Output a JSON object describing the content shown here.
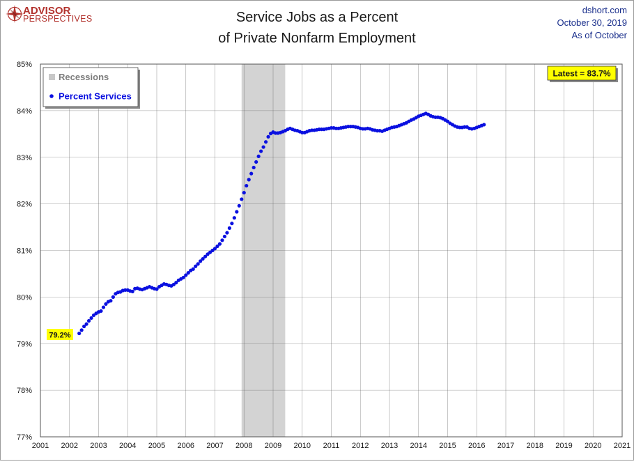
{
  "brand": {
    "line1": "ADVISOR",
    "line2": "PERSPECTIVES",
    "color": "#b2322d"
  },
  "header": {
    "title_line1": "Service Jobs as a Percent",
    "title_line2": "of Private Nonfarm Employment",
    "source": "dshort.com",
    "date": "October 30, 2019",
    "asof": "As of October"
  },
  "colors": {
    "series": "#0a10e0",
    "recession": "#d3d3d3",
    "grid": "#c8c8c8",
    "callout_bg": "#ffff00",
    "text": "#1a1a1a",
    "date_text": "#1a2f8c"
  },
  "chart_data": {
    "type": "scatter",
    "x_unit": "year",
    "xlim": [
      2001,
      2021
    ],
    "ylim": [
      77,
      85
    ],
    "x_ticks": [
      "2001",
      "2002",
      "2003",
      "2004",
      "2005",
      "2006",
      "2007",
      "2008",
      "2009",
      "2010",
      "2011",
      "2012",
      "2013",
      "2014",
      "2015",
      "2016",
      "2017",
      "2018",
      "2019",
      "2020",
      "2021"
    ],
    "y_ticks": [
      "77%",
      "78%",
      "79%",
      "80%",
      "81%",
      "82%",
      "83%",
      "84%",
      "85%"
    ],
    "grid": true,
    "legend_position": "top-left",
    "legend": {
      "recessions": "Recessions",
      "series": "Percent Services"
    },
    "recession": {
      "start": "2007-12",
      "end": "2009-06"
    },
    "annotations": {
      "first_label": "79.2%",
      "latest_label": "Latest = 83.7%"
    },
    "series": [
      {
        "name": "Percent Services",
        "start": "2002-05",
        "frequency": "monthly",
        "values": [
          79.22,
          79.29,
          79.37,
          79.42,
          79.49,
          79.55,
          79.61,
          79.65,
          79.68,
          79.7,
          79.78,
          79.85,
          79.9,
          79.92,
          80.0,
          80.07,
          80.1,
          80.11,
          80.14,
          80.15,
          80.15,
          80.13,
          80.12,
          80.18,
          80.19,
          80.17,
          80.16,
          80.18,
          80.2,
          80.22,
          80.2,
          80.18,
          80.17,
          80.22,
          80.25,
          80.28,
          80.27,
          80.25,
          80.24,
          80.27,
          80.31,
          80.36,
          80.39,
          80.42,
          80.47,
          80.52,
          80.57,
          80.6,
          80.66,
          80.71,
          80.77,
          80.82,
          80.87,
          80.92,
          80.96,
          81.0,
          81.04,
          81.09,
          81.14,
          81.22,
          81.3,
          81.38,
          81.48,
          81.58,
          81.7,
          81.83,
          81.96,
          82.1,
          82.24,
          82.39,
          82.52,
          82.65,
          82.78,
          82.9,
          83.02,
          83.13,
          83.22,
          83.33,
          83.44,
          83.51,
          83.54,
          83.52,
          83.52,
          83.53,
          83.55,
          83.57,
          83.6,
          83.62,
          83.6,
          83.58,
          83.57,
          83.55,
          83.53,
          83.53,
          83.55,
          83.57,
          83.58,
          83.58,
          83.59,
          83.6,
          83.6,
          83.6,
          83.61,
          83.62,
          83.63,
          83.63,
          83.62,
          83.62,
          83.63,
          83.64,
          83.65,
          83.66,
          83.66,
          83.66,
          83.65,
          83.64,
          83.62,
          83.61,
          83.61,
          83.62,
          83.61,
          83.59,
          83.58,
          83.57,
          83.57,
          83.56,
          83.58,
          83.6,
          83.62,
          83.64,
          83.65,
          83.66,
          83.68,
          83.7,
          83.72,
          83.74,
          83.77,
          83.8,
          83.82,
          83.85,
          83.88,
          83.9,
          83.92,
          83.94,
          83.92,
          83.89,
          83.87,
          83.86,
          83.86,
          83.85,
          83.83,
          83.8,
          83.77,
          83.73,
          83.7,
          83.67,
          83.65,
          83.64,
          83.64,
          83.65,
          83.65,
          83.62,
          83.61,
          83.62,
          83.64,
          83.66,
          83.68,
          83.7
        ]
      }
    ]
  }
}
